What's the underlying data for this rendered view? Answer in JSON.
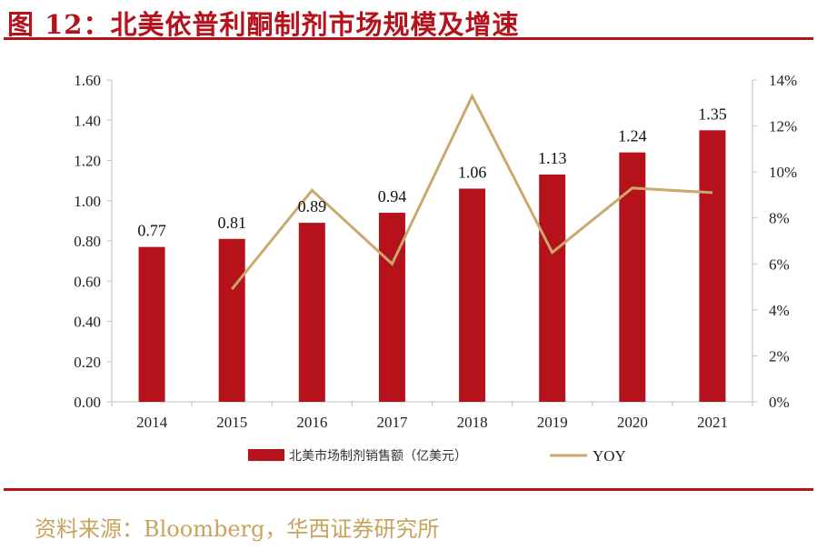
{
  "title": "图 12：北美依普利酮制剂市场规模及增速",
  "source": "资料来源：Bloomberg，华西证券研究所",
  "colors": {
    "bar": "#b5121b",
    "line": "#c9a96e",
    "accent": "#b5121b",
    "source": "#c9a35e"
  },
  "chart_data": {
    "type": "bar",
    "categories": [
      "2014",
      "2015",
      "2016",
      "2017",
      "2018",
      "2019",
      "2020",
      "2021"
    ],
    "series": [
      {
        "name": "北美市场制剂销售额（亿美元）",
        "type": "bar",
        "axis": "left",
        "values": [
          0.77,
          0.81,
          0.89,
          0.94,
          1.06,
          1.13,
          1.24,
          1.35
        ]
      },
      {
        "name": "YOY",
        "type": "line",
        "axis": "right",
        "values": [
          null,
          4.9,
          9.2,
          6.0,
          13.3,
          6.5,
          9.3,
          9.1
        ]
      }
    ],
    "data_labels": [
      "0.77",
      "0.81",
      "0.89",
      "0.94",
      "1.06",
      "1.13",
      "1.24",
      "1.35"
    ],
    "ylim": [
      0,
      1.6
    ],
    "y2lim": [
      0,
      14
    ],
    "y_ticks": [
      "0.00",
      "0.20",
      "0.40",
      "0.60",
      "0.80",
      "1.00",
      "1.20",
      "1.40",
      "1.60"
    ],
    "y2_ticks": [
      "0%",
      "2%",
      "4%",
      "6%",
      "8%",
      "10%",
      "12%",
      "14%"
    ],
    "legend_position": "bottom",
    "grid": false
  }
}
